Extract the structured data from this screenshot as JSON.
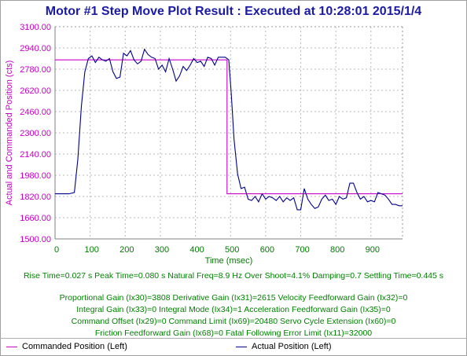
{
  "title": "Motor #1 Step Move Plot Result : Executed at 10:28:01 2015/1/4",
  "chart_data": {
    "type": "line",
    "ylabel": "Actual and Commanded Position (cts)",
    "xlabel": "Time (msec)",
    "ylim": [
      1500,
      3100
    ],
    "xlim": [
      0,
      990
    ],
    "yticks": [
      "3100.00",
      "2940.00",
      "2780.00",
      "2620.00",
      "2460.00",
      "2300.00",
      "2140.00",
      "1980.00",
      "1820.00",
      "1660.00",
      "1500.00"
    ],
    "xticks": [
      "0",
      "100",
      "200",
      "300",
      "400",
      "500",
      "600",
      "700",
      "800",
      "900"
    ],
    "grid": true,
    "legend_position": "bottom",
    "series": [
      {
        "name": "Commanded Position (Left)",
        "color": "#cc00cc",
        "x": [
          0,
          490,
          490,
          990
        ],
        "y": [
          2850,
          2850,
          1840,
          1840
        ]
      },
      {
        "name": "Actual Position (Left)",
        "color": "#00008b",
        "x": [
          0,
          20,
          40,
          55,
          65,
          75,
          85,
          95,
          105,
          115,
          125,
          135,
          145,
          155,
          165,
          175,
          185,
          195,
          205,
          215,
          225,
          235,
          245,
          255,
          265,
          275,
          285,
          295,
          305,
          315,
          325,
          335,
          345,
          355,
          365,
          375,
          385,
          395,
          405,
          415,
          425,
          435,
          445,
          455,
          465,
          475,
          485,
          495,
          502,
          510,
          520,
          530,
          540,
          550,
          560,
          570,
          580,
          590,
          600,
          610,
          620,
          630,
          640,
          650,
          660,
          670,
          680,
          690,
          700,
          710,
          720,
          730,
          740,
          750,
          760,
          770,
          780,
          790,
          800,
          810,
          820,
          830,
          840,
          850,
          860,
          870,
          880,
          890,
          900,
          910,
          920,
          930,
          940,
          950,
          960,
          970,
          980,
          990
        ],
        "y": [
          1840,
          1840,
          1840,
          1850,
          2100,
          2500,
          2760,
          2860,
          2880,
          2830,
          2870,
          2850,
          2840,
          2860,
          2760,
          2710,
          2720,
          2900,
          2880,
          2920,
          2850,
          2820,
          2840,
          2930,
          2890,
          2870,
          2860,
          2780,
          2810,
          2760,
          2860,
          2780,
          2690,
          2730,
          2800,
          2770,
          2810,
          2860,
          2830,
          2840,
          2800,
          2870,
          2860,
          2810,
          2870,
          2870,
          2870,
          2850,
          2600,
          2250,
          1990,
          1880,
          1890,
          1800,
          1790,
          1820,
          1780,
          1840,
          1800,
          1820,
          1810,
          1790,
          1820,
          1780,
          1810,
          1790,
          1810,
          1720,
          1720,
          1880,
          1800,
          1760,
          1730,
          1740,
          1800,
          1830,
          1790,
          1800,
          1760,
          1820,
          1800,
          1810,
          1920,
          1920,
          1850,
          1800,
          1820,
          1780,
          1790,
          1780,
          1850,
          1840,
          1830,
          1800,
          1760,
          1760,
          1750,
          1750
        ]
      }
    ]
  },
  "stats_line": "Rise Time=0.027 s   Peak Time=0.080 s   Natural Freq=8.9 Hz   Over Shoot=4.1%   Damping=0.7   Settling Time=0.445 s",
  "gains": [
    "Proportional Gain (Ix30)=3808  Derivative Gain (Ix31)=2615  Velocity Feedforward Gain (Ix32)=0",
    "Integral Gain (Ix33)=0  Integral Mode (Ix34)=1  Acceleration Feedforward Gain (Ix35)=0",
    "Command Offset (Ix29)=0  Command Limit (Ix69)=20480  Servo Cycle Extension (Ix60)=0",
    "Friction Feedforward Gain (Ix68)=0  Fatal Following Error Limit (Ix11)=32000"
  ],
  "legend": {
    "commanded": "Commanded Position (Left)",
    "actual": "Actual Position (Left)",
    "commanded_color": "#cc00cc",
    "actual_color": "#00008b"
  }
}
